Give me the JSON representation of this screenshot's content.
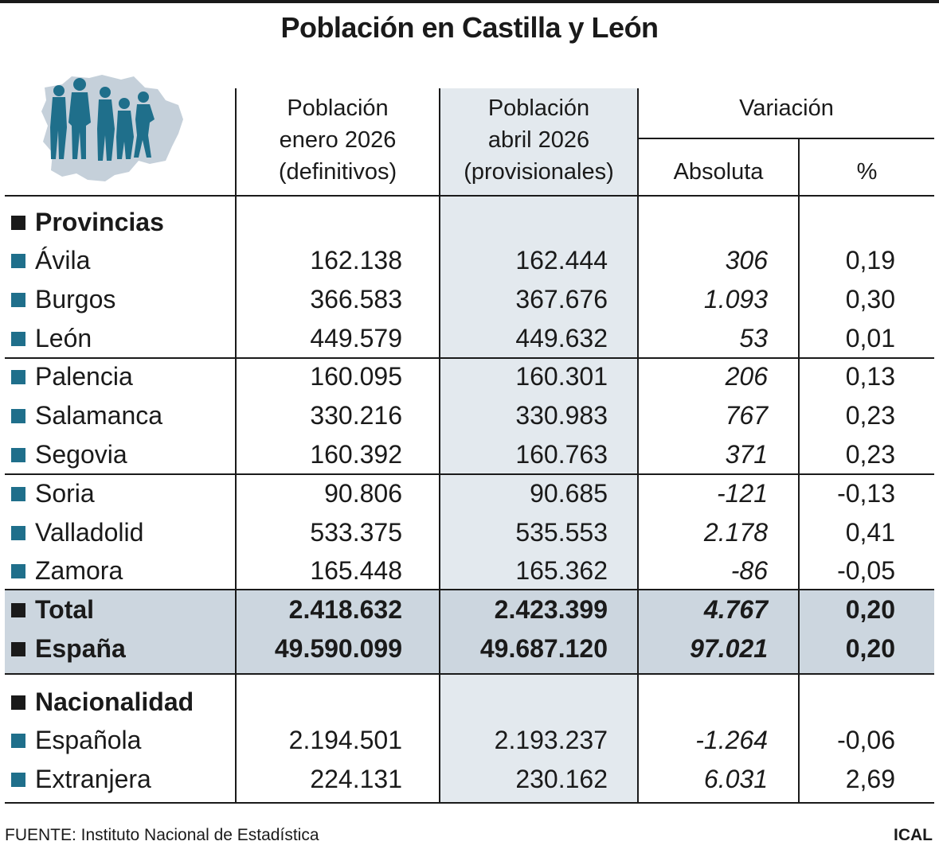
{
  "title": "Población en Castilla y León",
  "columns": {
    "col1": [
      "Población",
      "enero 2026",
      "(definitivos)"
    ],
    "col2": [
      "Población",
      "abril 2026",
      "(provisionales)"
    ],
    "variacion": "Variación",
    "absoluta": "Absoluta",
    "percent": "%"
  },
  "sections": {
    "provincias": "Provincias",
    "nacionalidad": "Nacionalidad"
  },
  "chart_data": {
    "type": "table",
    "title": "Población en Castilla y León",
    "columns": [
      "Población enero 2026 (definitivos)",
      "Población abril 2026 (provisionales)",
      "Variación Absoluta",
      "Variación %"
    ],
    "provincias": [
      {
        "name": "Ávila",
        "enero": "162.138",
        "abril": "162.444",
        "abs": "306",
        "pct": "0,19"
      },
      {
        "name": "Burgos",
        "enero": "366.583",
        "abril": "367.676",
        "abs": "1.093",
        "pct": "0,30"
      },
      {
        "name": "León",
        "enero": "449.579",
        "abril": "449.632",
        "abs": "53",
        "pct": "0,01"
      },
      {
        "name": "Palencia",
        "enero": "160.095",
        "abril": "160.301",
        "abs": "206",
        "pct": "0,13"
      },
      {
        "name": "Salamanca",
        "enero": "330.216",
        "abril": "330.983",
        "abs": "767",
        "pct": "0,23"
      },
      {
        "name": "Segovia",
        "enero": "160.392",
        "abril": "160.763",
        "abs": "371",
        "pct": "0,23"
      },
      {
        "name": "Soria",
        "enero": "90.806",
        "abril": "90.685",
        "abs": "-121",
        "pct": "-0,13"
      },
      {
        "name": "Valladolid",
        "enero": "533.375",
        "abril": "535.553",
        "abs": "2.178",
        "pct": "0,41"
      },
      {
        "name": "Zamora",
        "enero": "165.448",
        "abril": "165.362",
        "abs": "-86",
        "pct": "-0,05"
      }
    ],
    "totals": [
      {
        "name": "Total",
        "enero": "2.418.632",
        "abril": "2.423.399",
        "abs": "4.767",
        "pct": "0,20"
      },
      {
        "name": "España",
        "enero": "49.590.099",
        "abril": "49.687.120",
        "abs": "97.021",
        "pct": "0,20"
      }
    ],
    "nacionalidad": [
      {
        "name": "Española",
        "enero": "2.194.501",
        "abril": "2.193.237",
        "abs": "-1.264",
        "pct": "-0,06"
      },
      {
        "name": "Extranjera",
        "enero": "224.131",
        "abril": "230.162",
        "abs": "6.031",
        "pct": "2,69"
      }
    ]
  },
  "footer": {
    "source": "FUENTE: Instituto Nacional de Estadística",
    "brand": "ICAL"
  },
  "colors": {
    "accent": "#1f6f8b",
    "highlight_column": "#e3e9ee",
    "total_band": "#ccd6df"
  }
}
